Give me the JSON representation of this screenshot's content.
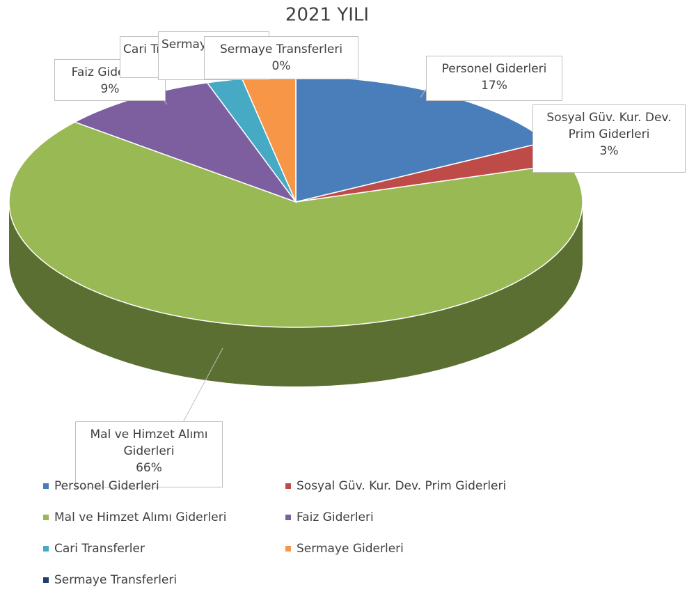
{
  "chart_data": {
    "type": "pie",
    "title": "2021 YILI",
    "categories": [
      "Personel Giderleri",
      "Sosyal Güv. Kur. Dev. Prim Giderleri",
      "Mal ve Himzet Alımı Giderleri",
      "Faiz Giderleri",
      "Cari Transferler",
      "Sermaye Giderleri",
      "Sermaye Transferleri"
    ],
    "values": [
      17,
      3,
      66,
      9,
      2,
      3,
      0
    ],
    "value_labels": [
      "17%",
      "3%",
      "66%",
      "9%",
      "2%",
      "3%",
      "0%"
    ],
    "colors": [
      "#4a7ebb",
      "#be4b48",
      "#98b954",
      "#7d5fa0",
      "#46aac5",
      "#f79646",
      "#1f3f6e"
    ],
    "legend": "bottom"
  }
}
